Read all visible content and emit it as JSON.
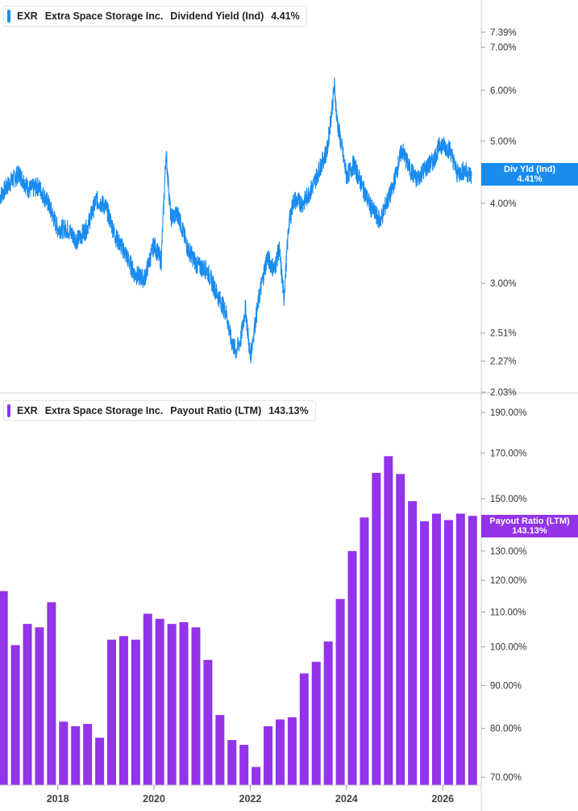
{
  "top_panel": {
    "ticker": "EXR",
    "company": "Extra Space Storage Inc.",
    "metric": "Dividend Yield (Ind)",
    "value": "4.41%",
    "last_label": "Div Yld (Ind)",
    "last_value": "4.41%"
  },
  "bottom_panel": {
    "ticker": "EXR",
    "company": "Extra Space Storage Inc.",
    "metric": "Payout Ratio (LTM)",
    "value": "143.13%",
    "last_label": "Payout Ratio (LTM)",
    "last_value": "143.13%"
  },
  "colors": {
    "line": "#1a8cf0",
    "bars": "#9333ea",
    "last_box_top": "#1a8cf0",
    "last_box_bottom": "#9333ea"
  },
  "chart_data": [
    {
      "type": "line",
      "title": "EXR Extra Space Storage Inc. Dividend Yield (Ind)",
      "ylabel": "",
      "yscale": "log",
      "ylim": [
        2.03,
        8.2
      ],
      "y_ticks": [
        "7.39%",
        "7.00%",
        "6.00%",
        "5.00%",
        "4.00%",
        "3.00%",
        "2.51%",
        "2.27%",
        "2.03%"
      ],
      "y_tick_values": [
        7.39,
        7.0,
        6.0,
        5.0,
        4.0,
        3.0,
        2.51,
        2.27,
        2.03
      ],
      "xlim": [
        2016.8,
        2026.8
      ],
      "series": [
        {
          "values": [
            [
              2016.8,
              4.1
            ],
            [
              2017.0,
              4.3
            ],
            [
              2017.2,
              4.45
            ],
            [
              2017.4,
              4.2
            ],
            [
              2017.6,
              4.25
            ],
            [
              2017.8,
              4.0
            ],
            [
              2018.0,
              3.65
            ],
            [
              2018.2,
              3.65
            ],
            [
              2018.4,
              3.5
            ],
            [
              2018.6,
              3.65
            ],
            [
              2018.8,
              4.05
            ],
            [
              2019.0,
              3.95
            ],
            [
              2019.2,
              3.55
            ],
            [
              2019.4,
              3.35
            ],
            [
              2019.6,
              3.1
            ],
            [
              2019.8,
              3.05
            ],
            [
              2020.0,
              3.45
            ],
            [
              2020.15,
              3.25
            ],
            [
              2020.25,
              4.8
            ],
            [
              2020.35,
              3.8
            ],
            [
              2020.5,
              3.85
            ],
            [
              2020.7,
              3.4
            ],
            [
              2020.9,
              3.2
            ],
            [
              2021.1,
              3.15
            ],
            [
              2021.3,
              2.9
            ],
            [
              2021.5,
              2.7
            ],
            [
              2021.6,
              2.45
            ],
            [
              2021.7,
              2.35
            ],
            [
              2021.8,
              2.45
            ],
            [
              2021.9,
              2.75
            ],
            [
              2022.0,
              2.3
            ],
            [
              2022.1,
              2.6
            ],
            [
              2022.2,
              2.9
            ],
            [
              2022.35,
              3.3
            ],
            [
              2022.5,
              3.15
            ],
            [
              2022.6,
              3.4
            ],
            [
              2022.7,
              2.85
            ],
            [
              2022.8,
              3.7
            ],
            [
              2022.9,
              4.05
            ],
            [
              2023.1,
              4.0
            ],
            [
              2023.3,
              4.25
            ],
            [
              2023.4,
              4.45
            ],
            [
              2023.6,
              4.85
            ],
            [
              2023.75,
              6.1
            ],
            [
              2023.8,
              5.4
            ],
            [
              2023.9,
              4.9
            ],
            [
              2024.0,
              4.4
            ],
            [
              2024.15,
              4.6
            ],
            [
              2024.3,
              4.3
            ],
            [
              2024.5,
              3.95
            ],
            [
              2024.7,
              3.75
            ],
            [
              2024.8,
              3.95
            ],
            [
              2024.95,
              4.2
            ],
            [
              2025.15,
              4.85
            ],
            [
              2025.3,
              4.55
            ],
            [
              2025.45,
              4.35
            ],
            [
              2025.6,
              4.5
            ],
            [
              2025.8,
              4.65
            ],
            [
              2025.95,
              4.95
            ],
            [
              2026.15,
              4.85
            ],
            [
              2026.3,
              4.45
            ],
            [
              2026.45,
              4.5
            ],
            [
              2026.6,
              4.41
            ]
          ]
        }
      ]
    },
    {
      "type": "bar",
      "title": "EXR Extra Space Storage Inc. Payout Ratio (LTM)",
      "ylabel": "",
      "yscale": "log",
      "ylim": [
        68.5,
        199
      ],
      "y_ticks": [
        "190.00%",
        "170.00%",
        "150.00%",
        "130.00%",
        "120.00%",
        "110.00%",
        "100.00%",
        "90.00%",
        "80.00%",
        "70.00%"
      ],
      "y_tick_values": [
        190,
        170,
        150,
        130,
        120,
        110,
        100,
        90,
        80,
        70
      ],
      "xlim": [
        2016.8,
        2026.8
      ],
      "x_ticks": [
        "2018",
        "2020",
        "2022",
        "2024",
        "2026"
      ],
      "x_tick_values": [
        2018,
        2020,
        2022,
        2024,
        2026
      ],
      "x": [
        2016.87,
        2017.12,
        2017.37,
        2017.62,
        2017.87,
        2018.12,
        2018.37,
        2018.62,
        2018.87,
        2019.12,
        2019.37,
        2019.62,
        2019.87,
        2020.12,
        2020.37,
        2020.62,
        2020.87,
        2021.12,
        2021.37,
        2021.62,
        2021.87,
        2022.12,
        2022.37,
        2022.62,
        2022.87,
        2023.12,
        2023.37,
        2023.62,
        2023.87,
        2024.12,
        2024.37,
        2024.62,
        2024.87,
        2025.12,
        2025.37,
        2025.62,
        2025.87,
        2026.12,
        2026.37,
        2026.62
      ],
      "values": [
        116.5,
        100.5,
        106.5,
        105.5,
        113.0,
        81.5,
        80.5,
        81.0,
        78.0,
        102.0,
        103.0,
        102.0,
        109.5,
        108.0,
        106.5,
        107.0,
        105.5,
        96.5,
        83.0,
        77.5,
        76.5,
        72.0,
        80.5,
        82.0,
        82.5,
        93.0,
        96.0,
        101.5,
        114.0,
        130.0,
        142.5,
        161.0,
        168.5,
        160.5,
        149.0,
        141.0,
        144.0,
        141.5,
        144.0,
        143.13
      ]
    }
  ]
}
